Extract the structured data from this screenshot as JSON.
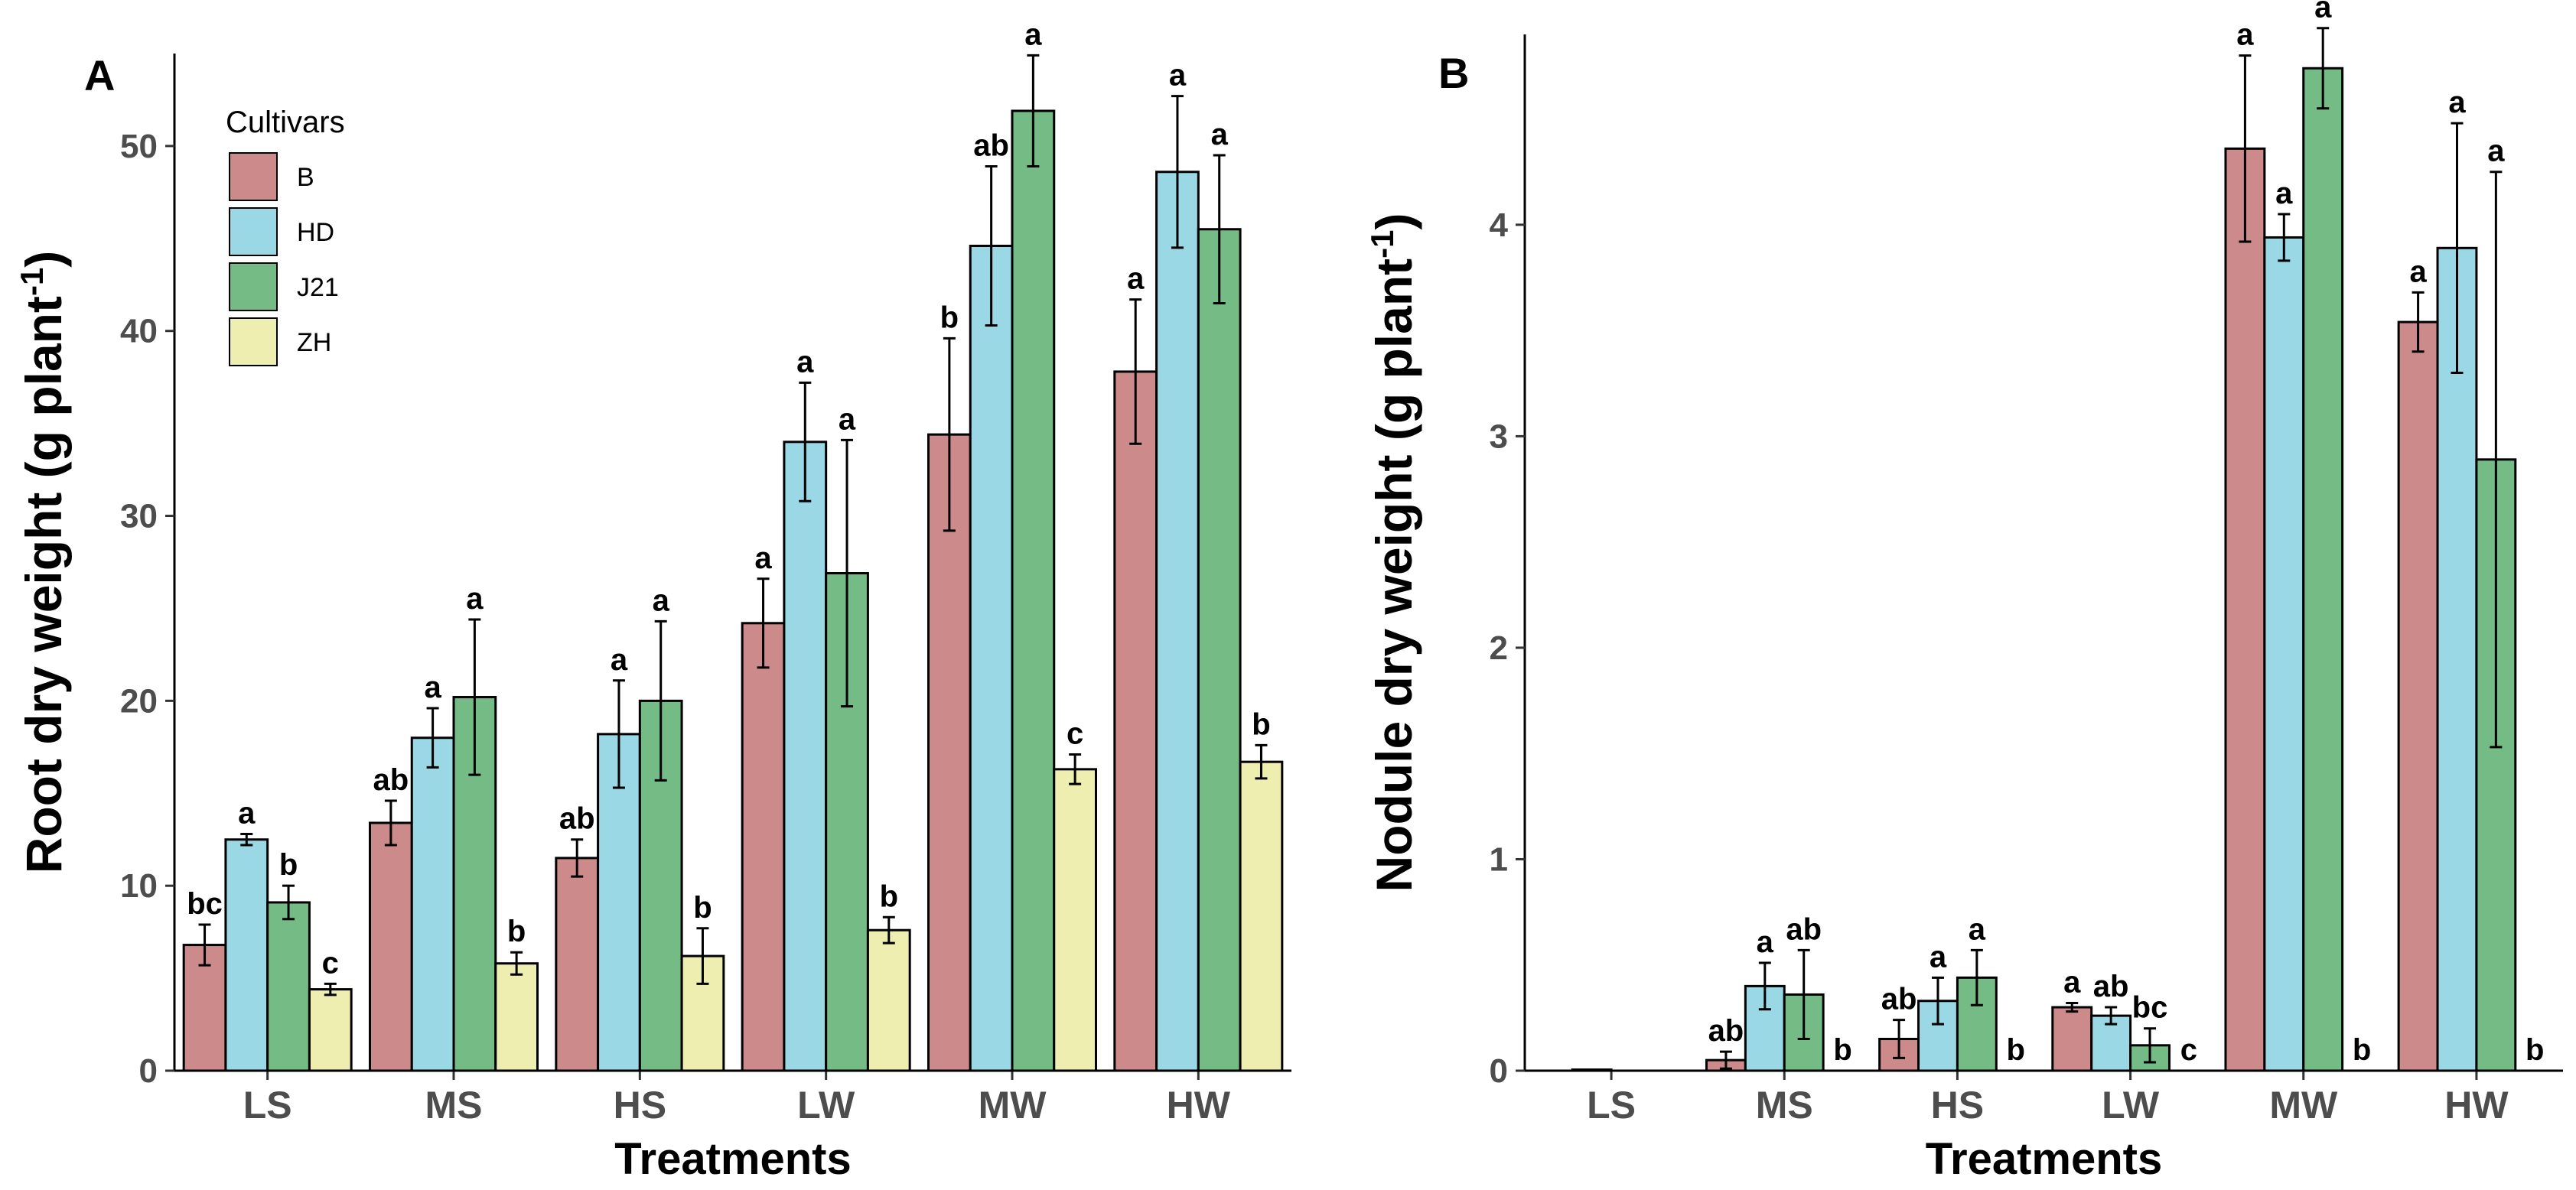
{
  "colors": {
    "B": "#cc8a8a",
    "HD": "#9ad8e6",
    "J21": "#74bb86",
    "ZH": "#eeeeb0"
  },
  "legend": {
    "title": "Cultivars",
    "items": [
      "B",
      "HD",
      "J21",
      "ZH"
    ]
  },
  "chart_data": [
    {
      "type": "bar",
      "panel": "A",
      "xlabel": "Treatments",
      "ylabel": "Root dry weight (g plant-1)",
      "ylabel_main": "Root dry weight (g plant",
      "ylabel_sup": "-1",
      "ylabel_tail": ")",
      "ylim": [
        0,
        55
      ],
      "yticks": [
        0,
        10,
        20,
        30,
        40,
        50
      ],
      "categories": [
        "LS",
        "MS",
        "HS",
        "LW",
        "MW",
        "HW"
      ],
      "series": [
        {
          "name": "B",
          "values": [
            6.8,
            13.4,
            11.5,
            24.2,
            34.4,
            37.8
          ],
          "errors": [
            1.1,
            1.2,
            1.0,
            2.4,
            5.2,
            3.9
          ],
          "letters": [
            "bc",
            "ab",
            "ab",
            "a",
            "b",
            "a"
          ]
        },
        {
          "name": "HD",
          "values": [
            12.5,
            18.0,
            18.2,
            34.0,
            44.6,
            48.6
          ],
          "errors": [
            0.3,
            1.6,
            2.9,
            3.2,
            4.3,
            4.1
          ],
          "letters": [
            "a",
            "a",
            "a",
            "a",
            "ab",
            "a"
          ]
        },
        {
          "name": "J21",
          "values": [
            9.1,
            20.2,
            20.0,
            26.9,
            51.9,
            45.5
          ],
          "errors": [
            0.9,
            4.2,
            4.3,
            7.2,
            3.0,
            4.0
          ],
          "letters": [
            "b",
            "a",
            "a",
            "a",
            "a",
            "a"
          ]
        },
        {
          "name": "ZH",
          "values": [
            4.4,
            5.8,
            6.2,
            7.6,
            16.3,
            16.7
          ],
          "errors": [
            0.3,
            0.6,
            1.5,
            0.7,
            0.8,
            0.9
          ],
          "letters": [
            "c",
            "b",
            "b",
            "b",
            "c",
            "b"
          ]
        }
      ]
    },
    {
      "type": "bar",
      "panel": "B",
      "xlabel": "Treatments",
      "ylabel": "Nodule dry weight (g plant-1)",
      "ylabel_main": "Nodule dry weight (g plant",
      "ylabel_sup": "-1",
      "ylabel_tail": ")",
      "ylim": [
        0,
        4.9
      ],
      "yticks": [
        0,
        1,
        2,
        3,
        4
      ],
      "categories": [
        "LS",
        "MS",
        "HS",
        "LW",
        "MW",
        "HW"
      ],
      "series": [
        {
          "name": "B",
          "values": [
            0,
            0.05,
            0.15,
            0.3,
            4.36,
            3.54
          ],
          "errors": [
            0,
            0.04,
            0.09,
            0.02,
            0.44,
            0.14
          ],
          "letters": [
            "",
            "ab",
            "ab",
            "a",
            "a",
            "a"
          ]
        },
        {
          "name": "HD",
          "values": [
            0.005,
            0.4,
            0.33,
            0.26,
            3.94,
            3.89
          ],
          "errors": [
            0,
            0.11,
            0.11,
            0.04,
            0.11,
            0.59
          ],
          "letters": [
            "",
            "a",
            "a",
            "ab",
            "a",
            "a"
          ]
        },
        {
          "name": "J21",
          "values": [
            0,
            0.36,
            0.44,
            0.12,
            4.74,
            2.89
          ],
          "errors": [
            0,
            0.21,
            0.13,
            0.08,
            0.19,
            1.36
          ],
          "letters": [
            "",
            "ab",
            "a",
            "bc",
            "a",
            "a"
          ]
        },
        {
          "name": "ZH",
          "values": [
            0,
            0,
            0,
            0,
            0,
            0
          ],
          "errors": [
            0,
            0,
            0,
            0,
            0,
            0
          ],
          "letters": [
            "",
            "b",
            "b",
            "c",
            "b",
            "b"
          ]
        }
      ]
    }
  ]
}
